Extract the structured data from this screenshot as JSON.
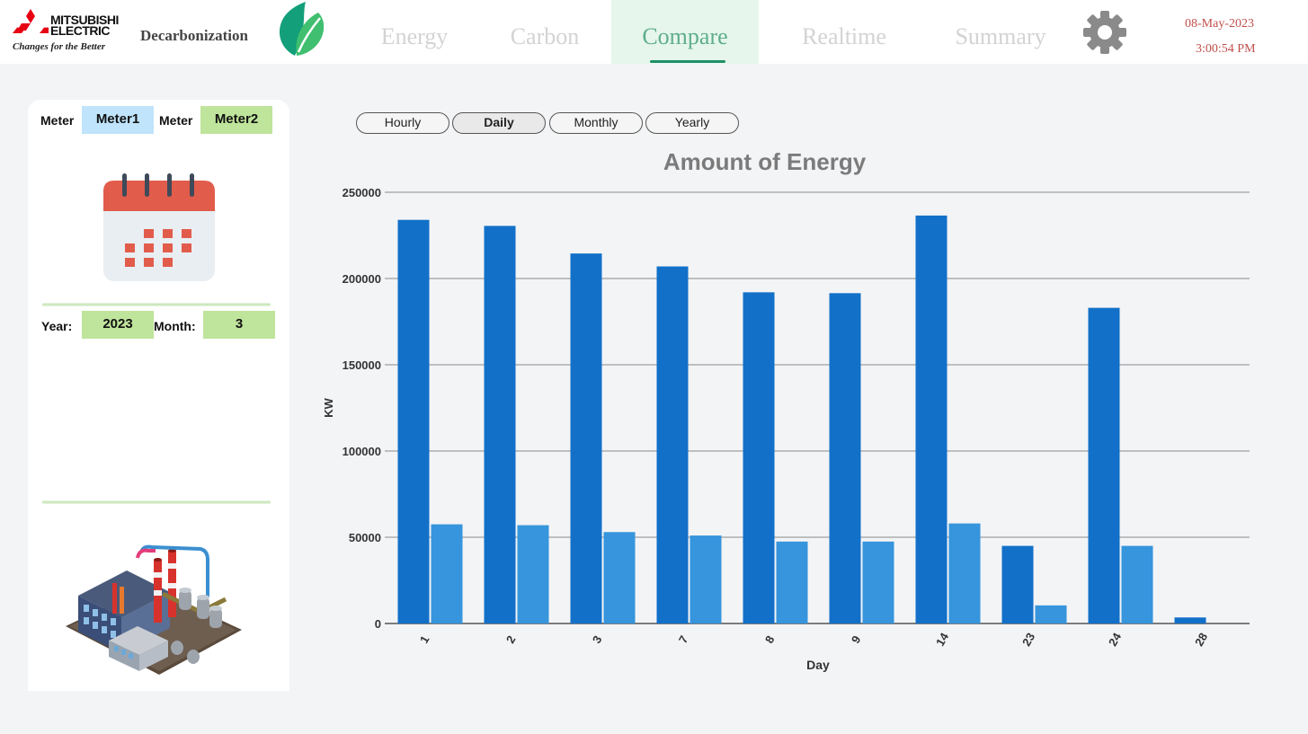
{
  "header": {
    "brand_line1": "MITSUBISHI",
    "brand_line2": "ELECTRIC",
    "tagline": "Changes for the Better",
    "app_title": "Decarbonization",
    "tabs": [
      {
        "label": "Energy",
        "active": false
      },
      {
        "label": "Carbon",
        "active": false
      },
      {
        "label": "Compare",
        "active": true
      },
      {
        "label": "Realtime",
        "active": false
      },
      {
        "label": "Summary",
        "active": false
      }
    ],
    "date": "08-May-2023",
    "time": "3:00:54 PM"
  },
  "panel": {
    "meter1_label": "Meter",
    "meter1_value": "Meter1",
    "meter2_label": "Meter",
    "meter2_value": "Meter2",
    "year_label": "Year:",
    "year_value": "2023",
    "month_label": "Month:",
    "month_value": "3"
  },
  "period_buttons": [
    {
      "label": "Hourly",
      "active": false
    },
    {
      "label": "Daily",
      "active": true
    },
    {
      "label": "Monthly",
      "active": false
    },
    {
      "label": "Yearly",
      "active": false
    }
  ],
  "colors": {
    "meter1_bar": "#1270c9",
    "meter2_bar": "#3695dc",
    "active_tab_bg": "#e6f6ec",
    "active_tab_text": "#5fae8b",
    "datetime": "#c0504d"
  },
  "chart_data": {
    "type": "bar",
    "title": "Amount of Energy",
    "xlabel": "Day",
    "ylabel": "KW",
    "ylim": [
      0,
      250000
    ],
    "yticks": [
      0,
      50000,
      100000,
      150000,
      200000,
      250000
    ],
    "grid": true,
    "categories": [
      "1",
      "2",
      "3",
      "7",
      "8",
      "9",
      "14",
      "23",
      "24",
      "28"
    ],
    "series": [
      {
        "values": [
          234000,
          230500,
          214500,
          207000,
          192000,
          191500,
          236500,
          45000,
          183000,
          3500
        ]
      },
      {
        "values": [
          57500,
          57000,
          53000,
          51000,
          47500,
          47500,
          58000,
          10500,
          45000,
          0
        ]
      }
    ]
  }
}
